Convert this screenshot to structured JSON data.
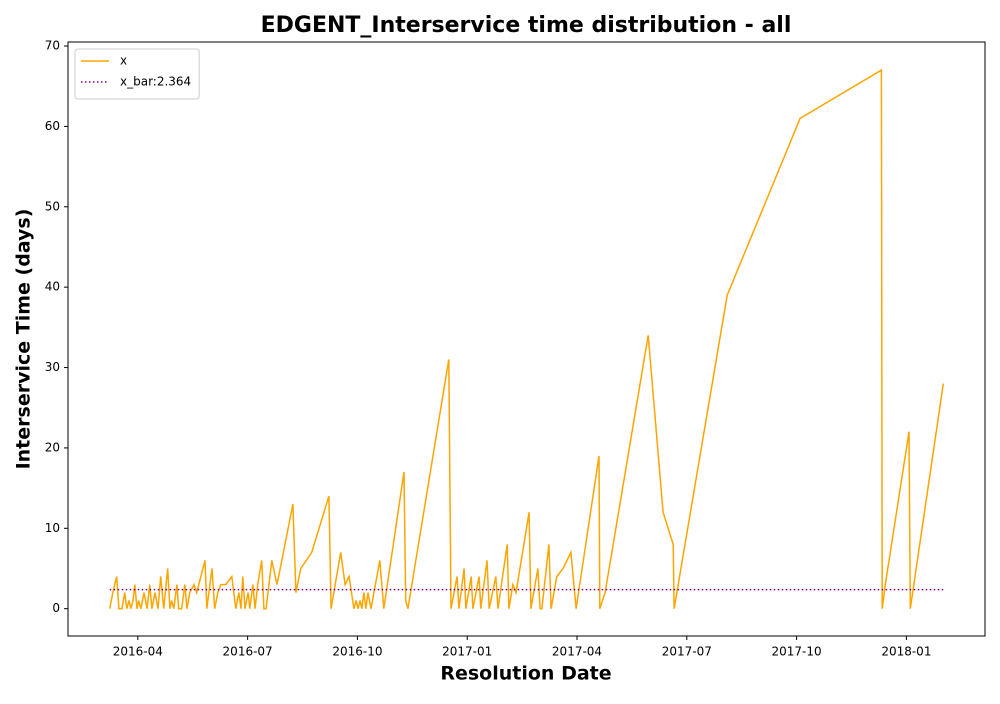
{
  "chart_data": {
    "type": "line",
    "title": "EDGENT_Interservice time distribution - all",
    "xlabel": "Resolution Date",
    "ylabel": "Interservice Time (days)",
    "x": [
      2016.186,
      2016.193,
      2016.202,
      2016.207,
      2016.214,
      2016.22,
      2016.225,
      2016.23,
      2016.234,
      2016.239,
      2016.243,
      2016.248,
      2016.252,
      2016.257,
      2016.264,
      2016.271,
      2016.277,
      2016.282,
      2016.289,
      2016.296,
      2016.302,
      2016.309,
      2016.318,
      2016.323,
      2016.327,
      2016.332,
      2016.339,
      2016.343,
      2016.35,
      2016.357,
      2016.362,
      2016.368,
      2016.378,
      2016.384,
      2016.403,
      2016.407,
      2016.419,
      2016.425,
      2016.432,
      2016.439,
      2016.45,
      2016.464,
      2016.473,
      2016.48,
      2016.485,
      2016.489,
      2016.494,
      2016.501,
      2016.505,
      2016.512,
      2016.517,
      2016.523,
      2016.532,
      2016.537,
      2016.542,
      2016.555,
      2016.567,
      2016.603,
      2016.61,
      2016.621,
      2016.646,
      2016.685,
      2016.69,
      2016.712,
      2016.722,
      2016.731,
      2016.742,
      2016.747,
      2016.751,
      2016.756,
      2016.76,
      2016.765,
      2016.769,
      2016.774,
      2016.781,
      2016.801,
      2016.81,
      2016.856,
      2016.86,
      2016.865,
      2016.958,
      2016.963,
      2016.977,
      2016.981,
      2016.993,
      2016.997,
      2017.009,
      2017.013,
      2017.027,
      2017.031,
      2017.045,
      2017.05,
      2017.065,
      2017.07,
      2017.091,
      2017.095,
      2017.104,
      2017.111,
      2017.141,
      2017.145,
      2017.161,
      2017.166,
      2017.17,
      2017.186,
      2017.191,
      2017.204,
      2017.218,
      2017.236,
      2017.248,
      2017.3,
      2017.302,
      2017.314,
      2017.412,
      2017.446,
      2017.469,
      2017.471,
      2017.592,
      2017.758,
      2017.943,
      2017.945,
      2017.952,
      2018.006,
      2018.009,
      2018.084
    ],
    "series": [
      {
        "name": "x",
        "color": "#ffa500",
        "values": [
          0,
          2,
          4,
          0,
          0,
          2,
          0,
          1,
          0,
          1,
          3,
          0,
          1,
          0,
          2,
          0,
          3,
          0,
          2,
          0,
          4,
          0,
          5,
          0,
          1,
          0,
          3,
          0,
          0,
          3,
          0,
          2,
          3,
          2,
          6,
          0,
          5,
          0,
          2,
          3,
          3,
          4,
          0,
          2,
          0,
          4,
          0,
          2,
          0,
          3,
          0,
          3,
          6,
          0,
          0,
          6,
          3,
          13,
          2,
          5,
          7,
          14,
          0,
          7,
          3,
          4,
          0,
          1,
          0,
          1,
          0,
          2,
          0,
          2,
          0,
          6,
          0,
          17,
          1,
          0,
          31,
          0,
          4,
          0,
          5,
          0,
          4,
          0,
          4,
          0,
          6,
          0,
          4,
          0,
          8,
          0,
          3,
          2,
          12,
          0,
          5,
          0,
          0,
          8,
          0,
          4,
          5,
          7,
          0,
          19,
          0,
          2,
          34,
          12,
          8,
          0,
          39,
          61,
          67,
          0,
          3,
          22,
          0,
          28
        ]
      }
    ],
    "hlines": [
      {
        "name": "x_bar:2.364",
        "value": 2.364,
        "color": "#800080",
        "style": "dotted"
      }
    ],
    "xlim": [
      2016.091,
      2018.179
    ],
    "xticks": [
      {
        "value": 2016.25,
        "label": "2016-04"
      },
      {
        "value": 2016.5,
        "label": "2016-07"
      },
      {
        "value": 2016.75,
        "label": "2016-10"
      },
      {
        "value": 2017.0,
        "label": "2017-01"
      },
      {
        "value": 2017.25,
        "label": "2017-04"
      },
      {
        "value": 2017.5,
        "label": "2017-07"
      },
      {
        "value": 2017.75,
        "label": "2017-10"
      },
      {
        "value": 2018.0,
        "label": "2018-01"
      }
    ],
    "ylim": [
      -3.4,
      70.5
    ],
    "yticks": [
      0,
      10,
      20,
      30,
      40,
      50,
      60,
      70
    ],
    "grid": false,
    "legend": "upper-left"
  }
}
